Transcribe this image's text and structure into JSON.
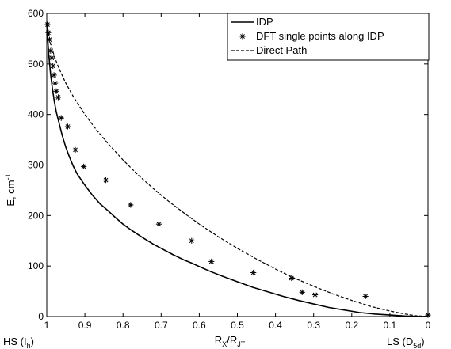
{
  "chart_data": {
    "type": "line",
    "xlim": [
      1,
      0
    ],
    "ylim": [
      0,
      600
    ],
    "x_reversed": true,
    "x_ticks": [
      "1",
      "0.9",
      "0.8",
      "0.7",
      "0.6",
      "0.5",
      "0.4",
      "0.3",
      "0.2",
      "0.1",
      "0"
    ],
    "y_ticks": [
      "0",
      "100",
      "200",
      "300",
      "400",
      "500",
      "600"
    ],
    "xlabel": {
      "main": "R",
      "sub1": "X",
      "slash": "/R",
      "sub2": "JT"
    },
    "ylabel": {
      "main": "E, cm",
      "sup": "-1"
    },
    "end_label_left": {
      "main": "HS (I",
      "sub": "h",
      "close": ")"
    },
    "end_label_right": {
      "main": "LS (D",
      "sub": "5d",
      "close": ")"
    },
    "legend_position": "top-right",
    "series": [
      {
        "name": "IDP",
        "style": "solid",
        "x": [
          1.0,
          0.995,
          0.99,
          0.985,
          0.98,
          0.975,
          0.97,
          0.96,
          0.95,
          0.94,
          0.93,
          0.92,
          0.9,
          0.88,
          0.86,
          0.84,
          0.82,
          0.8,
          0.78,
          0.75,
          0.72,
          0.7,
          0.67,
          0.64,
          0.62,
          0.6,
          0.57,
          0.54,
          0.5,
          0.46,
          0.42,
          0.38,
          0.34,
          0.3,
          0.26,
          0.22,
          0.18,
          0.14,
          0.1,
          0.06,
          0.03,
          0.0
        ],
        "y": [
          580,
          520,
          480,
          450,
          425,
          405,
          390,
          360,
          335,
          315,
          297,
          282,
          260,
          240,
          223,
          210,
          196,
          183,
          172,
          157,
          143,
          135,
          123,
          112,
          106,
          99,
          89,
          80,
          69,
          58,
          49,
          40,
          32,
          25,
          18,
          13,
          8,
          5,
          3,
          1,
          0.3,
          0
        ]
      },
      {
        "name": "DFT single points along IDP",
        "style": "markers",
        "x": [
          0.998,
          0.996,
          0.993,
          0.99,
          0.987,
          0.984,
          0.981,
          0.978,
          0.975,
          0.97,
          0.962,
          0.945,
          0.925,
          0.903,
          0.845,
          0.78,
          0.706,
          0.62,
          0.568,
          0.458,
          0.358,
          0.33,
          0.296,
          0.164,
          0.0
        ],
        "y": [
          578,
          562,
          548,
          526,
          512,
          496,
          478,
          462,
          446,
          434,
          393,
          376,
          330,
          297,
          270,
          221,
          183,
          150,
          109,
          87,
          76,
          48,
          43,
          40,
          3
        ]
      },
      {
        "name": "Direct Path",
        "style": "dashed",
        "x": [
          1.0,
          0.99,
          0.98,
          0.97,
          0.96,
          0.95,
          0.93,
          0.9,
          0.87,
          0.84,
          0.8,
          0.76,
          0.72,
          0.68,
          0.64,
          0.6,
          0.55,
          0.5,
          0.45,
          0.4,
          0.35,
          0.3,
          0.25,
          0.2,
          0.15,
          0.1,
          0.06,
          0.03,
          0.0
        ],
        "y": [
          580,
          540,
          515,
          495,
          478,
          462,
          435,
          400,
          370,
          343,
          310,
          280,
          253,
          228,
          205,
          183,
          158,
          135,
          114,
          94,
          76,
          60,
          45,
          32,
          20,
          11,
          5,
          1.5,
          0
        ]
      }
    ]
  }
}
